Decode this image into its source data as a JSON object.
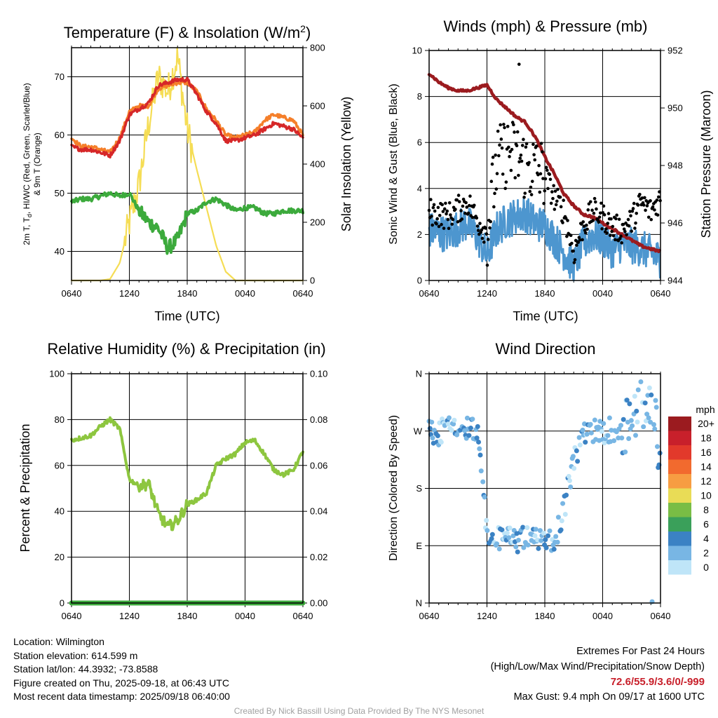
{
  "panels": {
    "temp": {
      "title_main": "Temperature (F) & Insolation (W/m",
      "title_sup": "2",
      "title_end": ")",
      "ylabel_line1": "2m T, T",
      "ylabel_sub": "d",
      "ylabel_line1_end": ", HI/WC (Red, Green, Scarlet/Blue)",
      "ylabel_line2": "& 9m T (Orange)",
      "y2label": "Solar Insolation (Yellow)",
      "xlabel": "Time (UTC)"
    },
    "wind": {
      "title": "Winds (mph) & Pressure (mb)",
      "ylabel": "Sonic Wind & Gust (Blue, Black)",
      "y2label": "Station Pressure (Maroon)",
      "xlabel": "Time (UTC)"
    },
    "rh": {
      "title": "Relative Humidity (%) & Precipitation (in)",
      "ylabel": "Percent & Precipitation"
    },
    "dir": {
      "title": "Wind Direction",
      "ylabel": "Direction (Colored By Speed)",
      "legend_title": "mph"
    }
  },
  "chart_data": [
    {
      "type": "line",
      "title": "Temperature (F) & Insolation (W/m2)",
      "xlabel": "Time (UTC)",
      "ylabel": "2m T, Td, HI/WC (Red, Green, Scarlet/Blue) & 9m T (Orange)",
      "y2label": "Solar Insolation (Yellow)",
      "x_ticks": [
        "0640",
        "1240",
        "1840",
        "0040",
        "0640"
      ],
      "ylim": [
        35,
        75
      ],
      "y_ticks": [
        40,
        50,
        60,
        70
      ],
      "y2lim": [
        0,
        800
      ],
      "y2_ticks": [
        0,
        200,
        400,
        600,
        800
      ],
      "x_hours": [
        0,
        1,
        2,
        3,
        4,
        5,
        6,
        7,
        8,
        9,
        10,
        11,
        12,
        13,
        14,
        15,
        16,
        17,
        18,
        19,
        20,
        21,
        22,
        23,
        24
      ],
      "series": [
        {
          "name": "2m T",
          "color": "#d62728",
          "axis": "left",
          "values": [
            58,
            57.5,
            57.5,
            57,
            56.5,
            59,
            63.5,
            64.5,
            65.5,
            68.5,
            69,
            69.5,
            69.5,
            67,
            64,
            62,
            59,
            59,
            59.5,
            60,
            61,
            62,
            61.5,
            61,
            59.5
          ]
        },
        {
          "name": "9m T",
          "color": "#f57f2a",
          "axis": "left",
          "values": [
            59.5,
            58,
            58,
            57.5,
            57,
            59.5,
            64,
            65,
            65,
            68,
            68.5,
            69,
            69,
            67.5,
            64.5,
            62.5,
            60,
            59.5,
            60,
            60.5,
            62.5,
            63.5,
            63,
            62.5,
            60
          ]
        },
        {
          "name": "Td",
          "color": "#3caa3c",
          "axis": "left",
          "values": [
            48.5,
            49,
            49,
            49.5,
            50,
            49.5,
            50,
            47,
            45,
            44,
            40.5,
            42,
            46.5,
            47,
            48.5,
            49,
            48,
            47,
            47.5,
            47.5,
            46.5,
            46.5,
            47,
            47,
            47
          ]
        },
        {
          "name": "Solar Insolation",
          "color": "#f5dd55",
          "axis": "right",
          "values": [
            0,
            0,
            0,
            0,
            5,
            60,
            200,
            330,
            540,
            700,
            650,
            770,
            520,
            380,
            250,
            120,
            30,
            0,
            0,
            0,
            0,
            0,
            0,
            0,
            0
          ]
        }
      ]
    },
    {
      "type": "line",
      "title": "Winds (mph) & Pressure (mb)",
      "xlabel": "Time (UTC)",
      "ylabel": "Sonic Wind & Gust (Blue, Black)",
      "y2label": "Station Pressure (Maroon)",
      "x_ticks": [
        "0640",
        "1240",
        "1840",
        "0040",
        "0640"
      ],
      "ylim": [
        0,
        10
      ],
      "y_ticks": [
        0,
        2,
        4,
        6,
        8,
        10
      ],
      "y2lim": [
        944,
        952
      ],
      "y2_ticks": [
        944,
        946,
        948,
        950,
        952
      ],
      "x_hours": [
        0,
        1,
        2,
        3,
        4,
        5,
        6,
        7,
        8,
        9,
        10,
        11,
        12,
        13,
        14,
        15,
        16,
        17,
        18,
        19,
        20,
        21,
        22,
        23,
        24
      ],
      "series": [
        {
          "name": "Sonic Wind",
          "color": "#4d96cf",
          "axis": "left",
          "values": [
            2.2,
            2.1,
            2.0,
            2.3,
            2.5,
            1.9,
            1.1,
            2.2,
            2.6,
            2.8,
            2.9,
            2.5,
            2.4,
            1.8,
            1.2,
            0.6,
            1.6,
            2.0,
            1.8,
            1.3,
            1.6,
            1.5,
            1.4,
            1.2,
            0.9
          ]
        },
        {
          "name": "Gust",
          "color": "#000000",
          "axis": "left",
          "values": [
            3.0,
            2.9,
            2.8,
            3.1,
            3.4,
            2.6,
            2.1,
            5.0,
            5.6,
            5.4,
            5.0,
            4.8,
            4.6,
            3.6,
            3.0,
            1.2,
            2.4,
            3.0,
            2.8,
            2.3,
            2.2,
            2.6,
            3.4,
            3.0,
            3.6
          ],
          "max_point": {
            "hour": 9.33,
            "value": 9.4
          }
        },
        {
          "name": "Station Pressure",
          "color": "#9b1b1f",
          "axis": "right",
          "values": [
            951.2,
            950.9,
            950.7,
            950.6,
            950.6,
            950.7,
            950.8,
            950.3,
            950.0,
            949.7,
            949.5,
            949.0,
            948.3,
            947.7,
            947.0,
            946.6,
            946.3,
            946.2,
            946.0,
            945.8,
            945.6,
            945.4,
            945.2,
            945.1,
            945.0
          ]
        }
      ]
    },
    {
      "type": "line",
      "title": "Relative Humidity (%) & Precipitation (in)",
      "xlabel": "",
      "ylabel": "Percent & Precipitation",
      "x_ticks": [
        "0640",
        "1240",
        "1840",
        "0040",
        "0640"
      ],
      "ylim": [
        0,
        100
      ],
      "y_ticks": [
        0,
        20,
        40,
        60,
        80,
        100
      ],
      "y2lim": [
        0,
        0.1
      ],
      "y2_ticks": [
        "0.00",
        "0.02",
        "0.04",
        "0.06",
        "0.08",
        "0.10"
      ],
      "x_hours": [
        0,
        1,
        2,
        3,
        4,
        5,
        6,
        7,
        8,
        9,
        10,
        11,
        12,
        13,
        14,
        15,
        16,
        17,
        18,
        19,
        20,
        21,
        22,
        23,
        24
      ],
      "series": [
        {
          "name": "Relative Humidity",
          "color": "#8dc63f",
          "axis": "left",
          "values": [
            71,
            72,
            73,
            77,
            80,
            76,
            54,
            51,
            52,
            39,
            33,
            36,
            43,
            45,
            48,
            60,
            63,
            65,
            70,
            71,
            65,
            58,
            56,
            58,
            66
          ]
        },
        {
          "name": "Precipitation",
          "color": "#3caa3c",
          "axis": "right",
          "values": [
            0,
            0,
            0,
            0,
            0,
            0,
            0,
            0,
            0,
            0,
            0,
            0,
            0,
            0,
            0,
            0,
            0,
            0,
            0,
            0,
            0,
            0,
            0,
            0,
            0
          ]
        }
      ]
    },
    {
      "type": "scatter",
      "title": "Wind Direction",
      "xlabel": "",
      "ylabel": "Direction (Colored By Speed)",
      "x_ticks": [
        "0640",
        "1240",
        "1840",
        "0040",
        "0640"
      ],
      "y_ticks": [
        "N",
        "E",
        "S",
        "W",
        "N"
      ],
      "ylim": [
        0,
        360
      ],
      "x_hours": [
        0,
        1,
        2,
        3,
        4,
        5,
        6,
        7,
        8,
        9,
        10,
        11,
        12,
        13,
        14,
        15,
        16,
        17,
        18,
        19,
        20,
        21,
        22,
        23,
        24
      ],
      "series": [
        {
          "name": "direction_deg",
          "values": [
            270,
            268,
            272,
            270,
            274,
            265,
            110,
            100,
            104,
            98,
            102,
            100,
            92,
            98,
            150,
            220,
            262,
            268,
            270,
            274,
            278,
            290,
            310,
            330,
            200
          ]
        }
      ],
      "legend": {
        "title": "mph",
        "labels": [
          "20+",
          "18",
          "16",
          "14",
          "12",
          "10",
          "8",
          "6",
          "4",
          "2",
          "0"
        ],
        "colors": [
          "#9b1b1f",
          "#c8202b",
          "#e2392b",
          "#f26a2e",
          "#f79d42",
          "#e9dc56",
          "#79bd45",
          "#3aa05a",
          "#3b82c4",
          "#78b6e4",
          "#bfe5f8"
        ]
      }
    }
  ],
  "footer": {
    "location": "Location: Wilmington",
    "elevation": "Station elevation: 614.599 m",
    "latlon": "Station lat/lon: 44.3932; -73.8588",
    "created": "Figure created on Thu, 2025-09-18, at 06:43 UTC",
    "recent": "Most recent data timestamp: 2025/09/18 06:40:00",
    "extremes_title": "Extremes For Past 24 Hours",
    "extremes_sub": "(High/Low/Max Wind/Precipitation/Snow Depth)",
    "extremes_values": "72.6/55.9/3.6/0/-999",
    "max_gust": "Max Gust: 9.4 mph On 09/17 at 1600 UTC",
    "credit": "Created By Nick Bassill Using Data Provided By The NYS Mesonet"
  }
}
